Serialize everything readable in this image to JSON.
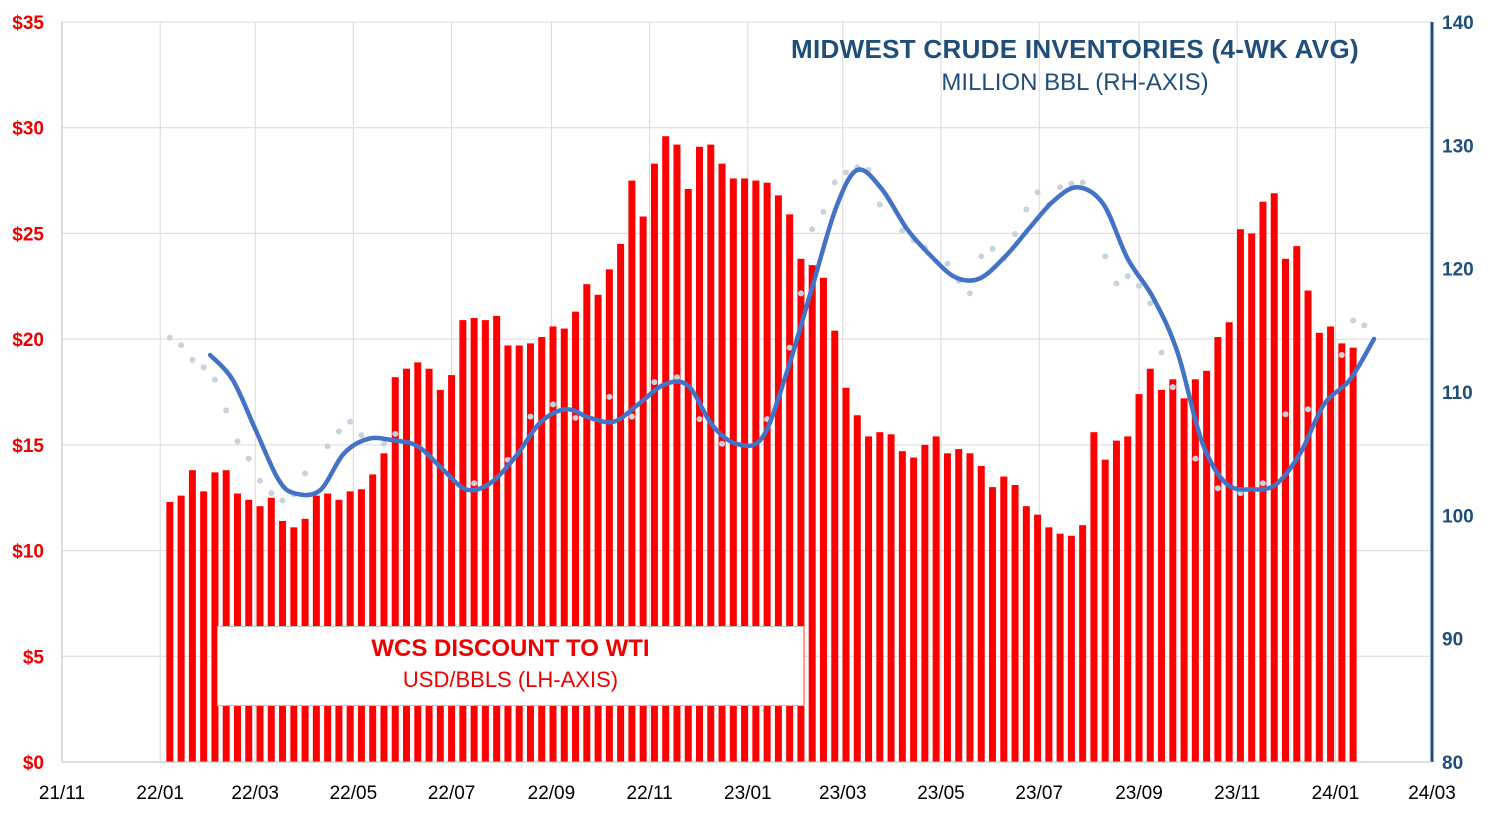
{
  "colors": {
    "bars": "#ff0000",
    "left_axis_text": "#ee0000",
    "right_axis_text": "#1f4e79",
    "inventory_line": "#4472c4",
    "inventory_dots": "#c8d3e0",
    "grid": "#d9d9d9",
    "x_axis_text": "#000000"
  },
  "annotations": {
    "inventory_title": "MIDWEST CRUDE INVENTORIES (4-WK AVG)",
    "inventory_subtitle": "MILLION BBL (RH-AXIS)",
    "wcs_title": "WCS DISCOUNT TO WTI",
    "wcs_subtitle": "USD/BBLS (LH-AXIS)"
  },
  "chart_data": {
    "type": "bar",
    "x_axis": {
      "ticks": [
        "21/11",
        "22/01",
        "22/03",
        "22/05",
        "22/07",
        "22/09",
        "22/11",
        "23/01",
        "23/03",
        "23/05",
        "23/07",
        "23/09",
        "23/11",
        "24/01",
        "24/03"
      ],
      "range_months": [
        "2021-11",
        "2024-03"
      ]
    },
    "left_axis": {
      "ticks": [
        "$0",
        "$5",
        "$10",
        "$15",
        "$20",
        "$25",
        "$30",
        "$35"
      ],
      "ylim": [
        0,
        35
      ]
    },
    "right_axis": {
      "ticks": [
        "80",
        "90",
        "100",
        "110",
        "120",
        "130",
        "140"
      ],
      "ylim": [
        80,
        140
      ]
    },
    "grid": true,
    "series": [
      {
        "name": "WCS DISCOUNT TO WTI",
        "type": "bar",
        "axis": "left",
        "x_start": "2022-01-07",
        "x_step_days": 7,
        "values": [
          12.3,
          12.6,
          13.8,
          12.8,
          13.7,
          13.8,
          12.7,
          12.4,
          12.1,
          12.5,
          11.4,
          11.1,
          11.5,
          12.6,
          12.7,
          12.4,
          12.8,
          12.9,
          13.6,
          14.6,
          18.2,
          18.6,
          18.9,
          18.6,
          17.6,
          18.3,
          20.9,
          21.0,
          20.9,
          21.1,
          19.7,
          19.7,
          19.8,
          20.1,
          20.6,
          20.5,
          21.3,
          22.6,
          22.1,
          23.3,
          24.5,
          27.5,
          25.8,
          28.3,
          29.6,
          29.2,
          27.1,
          29.1,
          29.2,
          28.3,
          27.6,
          27.6,
          27.5,
          27.4,
          26.8,
          25.9,
          23.8,
          23.5,
          22.9,
          20.4,
          17.7,
          16.4,
          15.4,
          15.6,
          15.5,
          14.7,
          14.4,
          15.0,
          15.4,
          14.6,
          14.8,
          14.6,
          14.0,
          13.0,
          13.5,
          13.1,
          12.1,
          11.7,
          11.1,
          10.8,
          10.7,
          11.2,
          15.6,
          14.3,
          15.2,
          15.4,
          17.4,
          18.6,
          17.6,
          18.1,
          17.2,
          18.1,
          18.5,
          20.1,
          20.8,
          25.2,
          25.0,
          26.5,
          26.9,
          23.8,
          24.4,
          22.3,
          20.3,
          20.6,
          19.8,
          19.6
        ]
      },
      {
        "name": "MIDWEST CRUDE INVENTORIES (4-WK AVG)",
        "type": "line",
        "axis": "right",
        "points": [
          [
            "2022-02-01",
            113.0
          ],
          [
            "2022-02-15",
            111.0
          ],
          [
            "2022-03-01",
            107.0
          ],
          [
            "2022-03-15",
            103.0
          ],
          [
            "2022-03-25",
            101.8
          ],
          [
            "2022-04-10",
            102.0
          ],
          [
            "2022-04-25",
            105.0
          ],
          [
            "2022-05-10",
            106.2
          ],
          [
            "2022-05-25",
            106.1
          ],
          [
            "2022-06-10",
            105.6
          ],
          [
            "2022-06-25",
            103.8
          ],
          [
            "2022-07-10",
            102.1
          ],
          [
            "2022-07-25",
            102.6
          ],
          [
            "2022-08-10",
            104.8
          ],
          [
            "2022-08-25",
            107.5
          ],
          [
            "2022-09-10",
            108.6
          ],
          [
            "2022-09-25",
            107.9
          ],
          [
            "2022-10-10",
            107.6
          ],
          [
            "2022-10-25",
            109.0
          ],
          [
            "2022-11-10",
            110.6
          ],
          [
            "2022-11-25",
            110.5
          ],
          [
            "2022-12-10",
            107.3
          ],
          [
            "2022-12-25",
            105.8
          ],
          [
            "2023-01-10",
            106.3
          ],
          [
            "2023-01-25",
            111.5
          ],
          [
            "2023-02-10",
            118.5
          ],
          [
            "2023-02-25",
            125.0
          ],
          [
            "2023-03-10",
            128.0
          ],
          [
            "2023-03-25",
            126.5
          ],
          [
            "2023-04-10",
            123.2
          ],
          [
            "2023-04-25",
            121.0
          ],
          [
            "2023-05-10",
            119.3
          ],
          [
            "2023-05-25",
            119.2
          ],
          [
            "2023-06-10",
            121.0
          ],
          [
            "2023-06-25",
            123.3
          ],
          [
            "2023-07-10",
            125.5
          ],
          [
            "2023-07-25",
            126.6
          ],
          [
            "2023-08-10",
            125.2
          ],
          [
            "2023-08-25",
            120.8
          ],
          [
            "2023-09-10",
            117.6
          ],
          [
            "2023-09-25",
            113.2
          ],
          [
            "2023-10-10",
            106.0
          ],
          [
            "2023-10-25",
            102.6
          ],
          [
            "2023-11-10",
            102.1
          ],
          [
            "2023-11-25",
            102.5
          ],
          [
            "2023-12-10",
            105.0
          ],
          [
            "2023-12-25",
            109.0
          ],
          [
            "2024-01-10",
            111.0
          ],
          [
            "2024-01-25",
            114.3
          ]
        ]
      },
      {
        "name": "weekly inventories",
        "type": "scatter",
        "axis": "right",
        "points": [
          [
            "2022-01-07",
            114.4
          ],
          [
            "2022-01-14",
            113.8
          ],
          [
            "2022-01-21",
            112.6
          ],
          [
            "2022-01-28",
            112.0
          ],
          [
            "2022-02-04",
            111.0
          ],
          [
            "2022-02-11",
            108.5
          ],
          [
            "2022-02-18",
            106.0
          ],
          [
            "2022-02-25",
            104.6
          ],
          [
            "2022-03-04",
            102.8
          ],
          [
            "2022-03-11",
            101.8
          ],
          [
            "2022-03-18",
            101.2
          ],
          [
            "2022-03-25",
            101.7
          ],
          [
            "2022-04-01",
            103.4
          ],
          [
            "2022-04-15",
            105.6
          ],
          [
            "2022-04-22",
            106.8
          ],
          [
            "2022-04-29",
            107.6
          ],
          [
            "2022-05-06",
            106.5
          ],
          [
            "2022-05-20",
            105.8
          ],
          [
            "2022-05-27",
            106.6
          ],
          [
            "2022-07-15",
            102.6
          ],
          [
            "2022-08-05",
            104.5
          ],
          [
            "2022-08-19",
            108.0
          ],
          [
            "2022-09-02",
            109.0
          ],
          [
            "2022-09-16",
            107.9
          ],
          [
            "2022-10-07",
            109.6
          ],
          [
            "2022-10-21",
            108.0
          ],
          [
            "2022-11-04",
            110.8
          ],
          [
            "2022-11-18",
            111.2
          ],
          [
            "2022-12-02",
            107.8
          ],
          [
            "2022-12-16",
            105.8
          ],
          [
            "2023-01-13",
            107.8
          ],
          [
            "2023-01-27",
            113.6
          ],
          [
            "2023-02-03",
            118.0
          ],
          [
            "2023-02-10",
            123.2
          ],
          [
            "2023-02-17",
            124.6
          ],
          [
            "2023-02-24",
            127.0
          ],
          [
            "2023-03-03",
            127.8
          ],
          [
            "2023-03-10",
            128.2
          ],
          [
            "2023-03-17",
            128.0
          ],
          [
            "2023-03-24",
            125.2
          ],
          [
            "2023-04-07",
            123.1
          ],
          [
            "2023-04-14",
            122.3
          ],
          [
            "2023-04-21",
            121.7
          ],
          [
            "2023-05-05",
            120.4
          ],
          [
            "2023-05-12",
            119.0
          ],
          [
            "2023-05-19",
            118.0
          ],
          [
            "2023-05-26",
            121.0
          ],
          [
            "2023-06-02",
            121.6
          ],
          [
            "2023-06-09",
            120.8
          ],
          [
            "2023-06-16",
            122.8
          ],
          [
            "2023-06-23",
            124.8
          ],
          [
            "2023-06-30",
            126.2
          ],
          [
            "2023-07-07",
            125.2
          ],
          [
            "2023-07-14",
            126.6
          ],
          [
            "2023-07-21",
            126.9
          ],
          [
            "2023-07-28",
            127.0
          ],
          [
            "2023-08-11",
            121.0
          ],
          [
            "2023-08-18",
            118.8
          ],
          [
            "2023-08-25",
            119.4
          ],
          [
            "2023-09-01",
            118.6
          ],
          [
            "2023-09-08",
            117.2
          ],
          [
            "2023-09-15",
            113.2
          ],
          [
            "2023-09-22",
            110.4
          ],
          [
            "2023-10-06",
            104.6
          ],
          [
            "2023-10-20",
            102.2
          ],
          [
            "2023-11-03",
            101.8
          ],
          [
            "2023-11-17",
            102.6
          ],
          [
            "2023-12-01",
            108.2
          ],
          [
            "2023-12-15",
            108.6
          ],
          [
            "2024-01-05",
            113.0
          ],
          [
            "2024-01-12",
            115.8
          ],
          [
            "2024-01-19",
            115.4
          ]
        ]
      }
    ]
  }
}
